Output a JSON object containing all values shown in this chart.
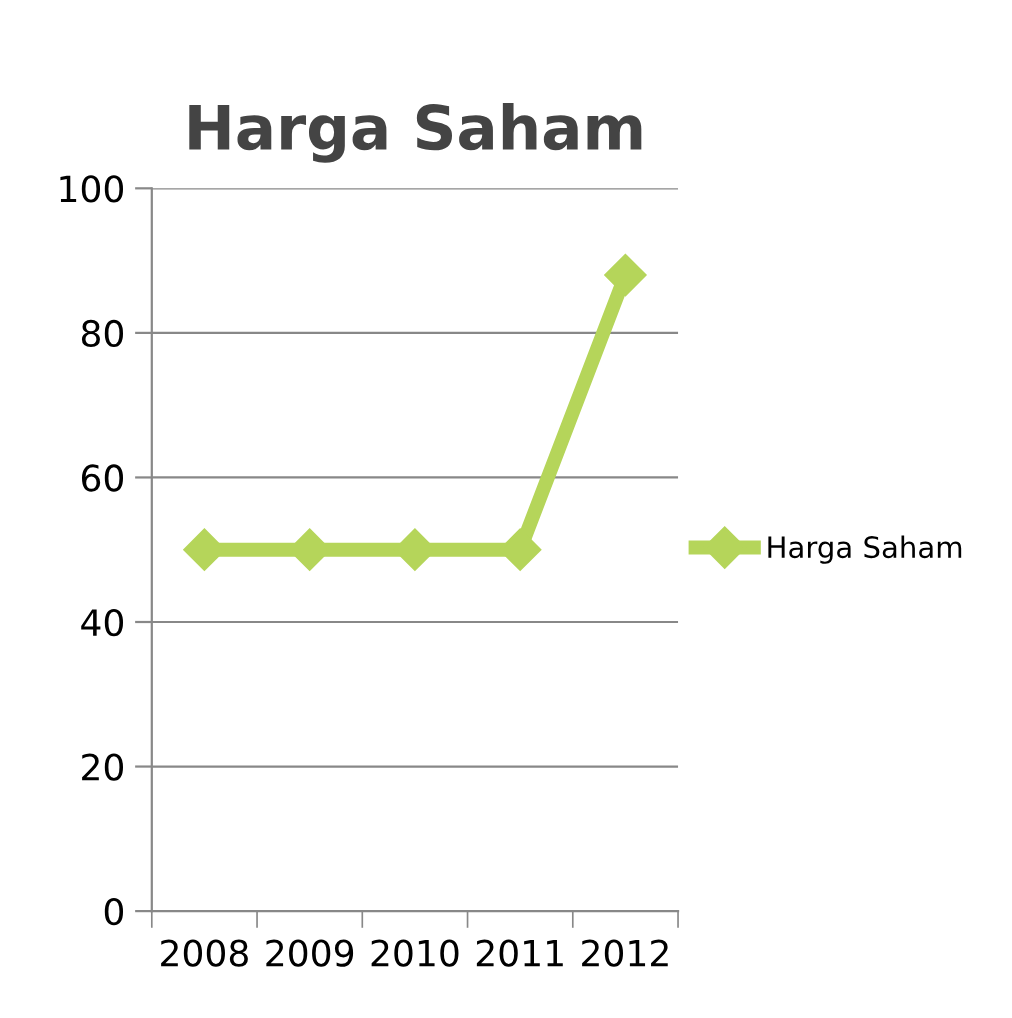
{
  "chart_data": {
    "type": "line",
    "title": "Harga Saham",
    "categories": [
      "2008",
      "2009",
      "2010",
      "2011",
      "2012"
    ],
    "series": [
      {
        "name": "Harga Saham",
        "color": "#b5d55a",
        "values": [
          50,
          50,
          50,
          50,
          88
        ]
      }
    ],
    "ylim": [
      0,
      100
    ],
    "yticks": [
      0,
      20,
      40,
      60,
      80,
      100
    ],
    "grid": "y",
    "legend": "right",
    "marker": "diamond",
    "line_style": "solid"
  }
}
